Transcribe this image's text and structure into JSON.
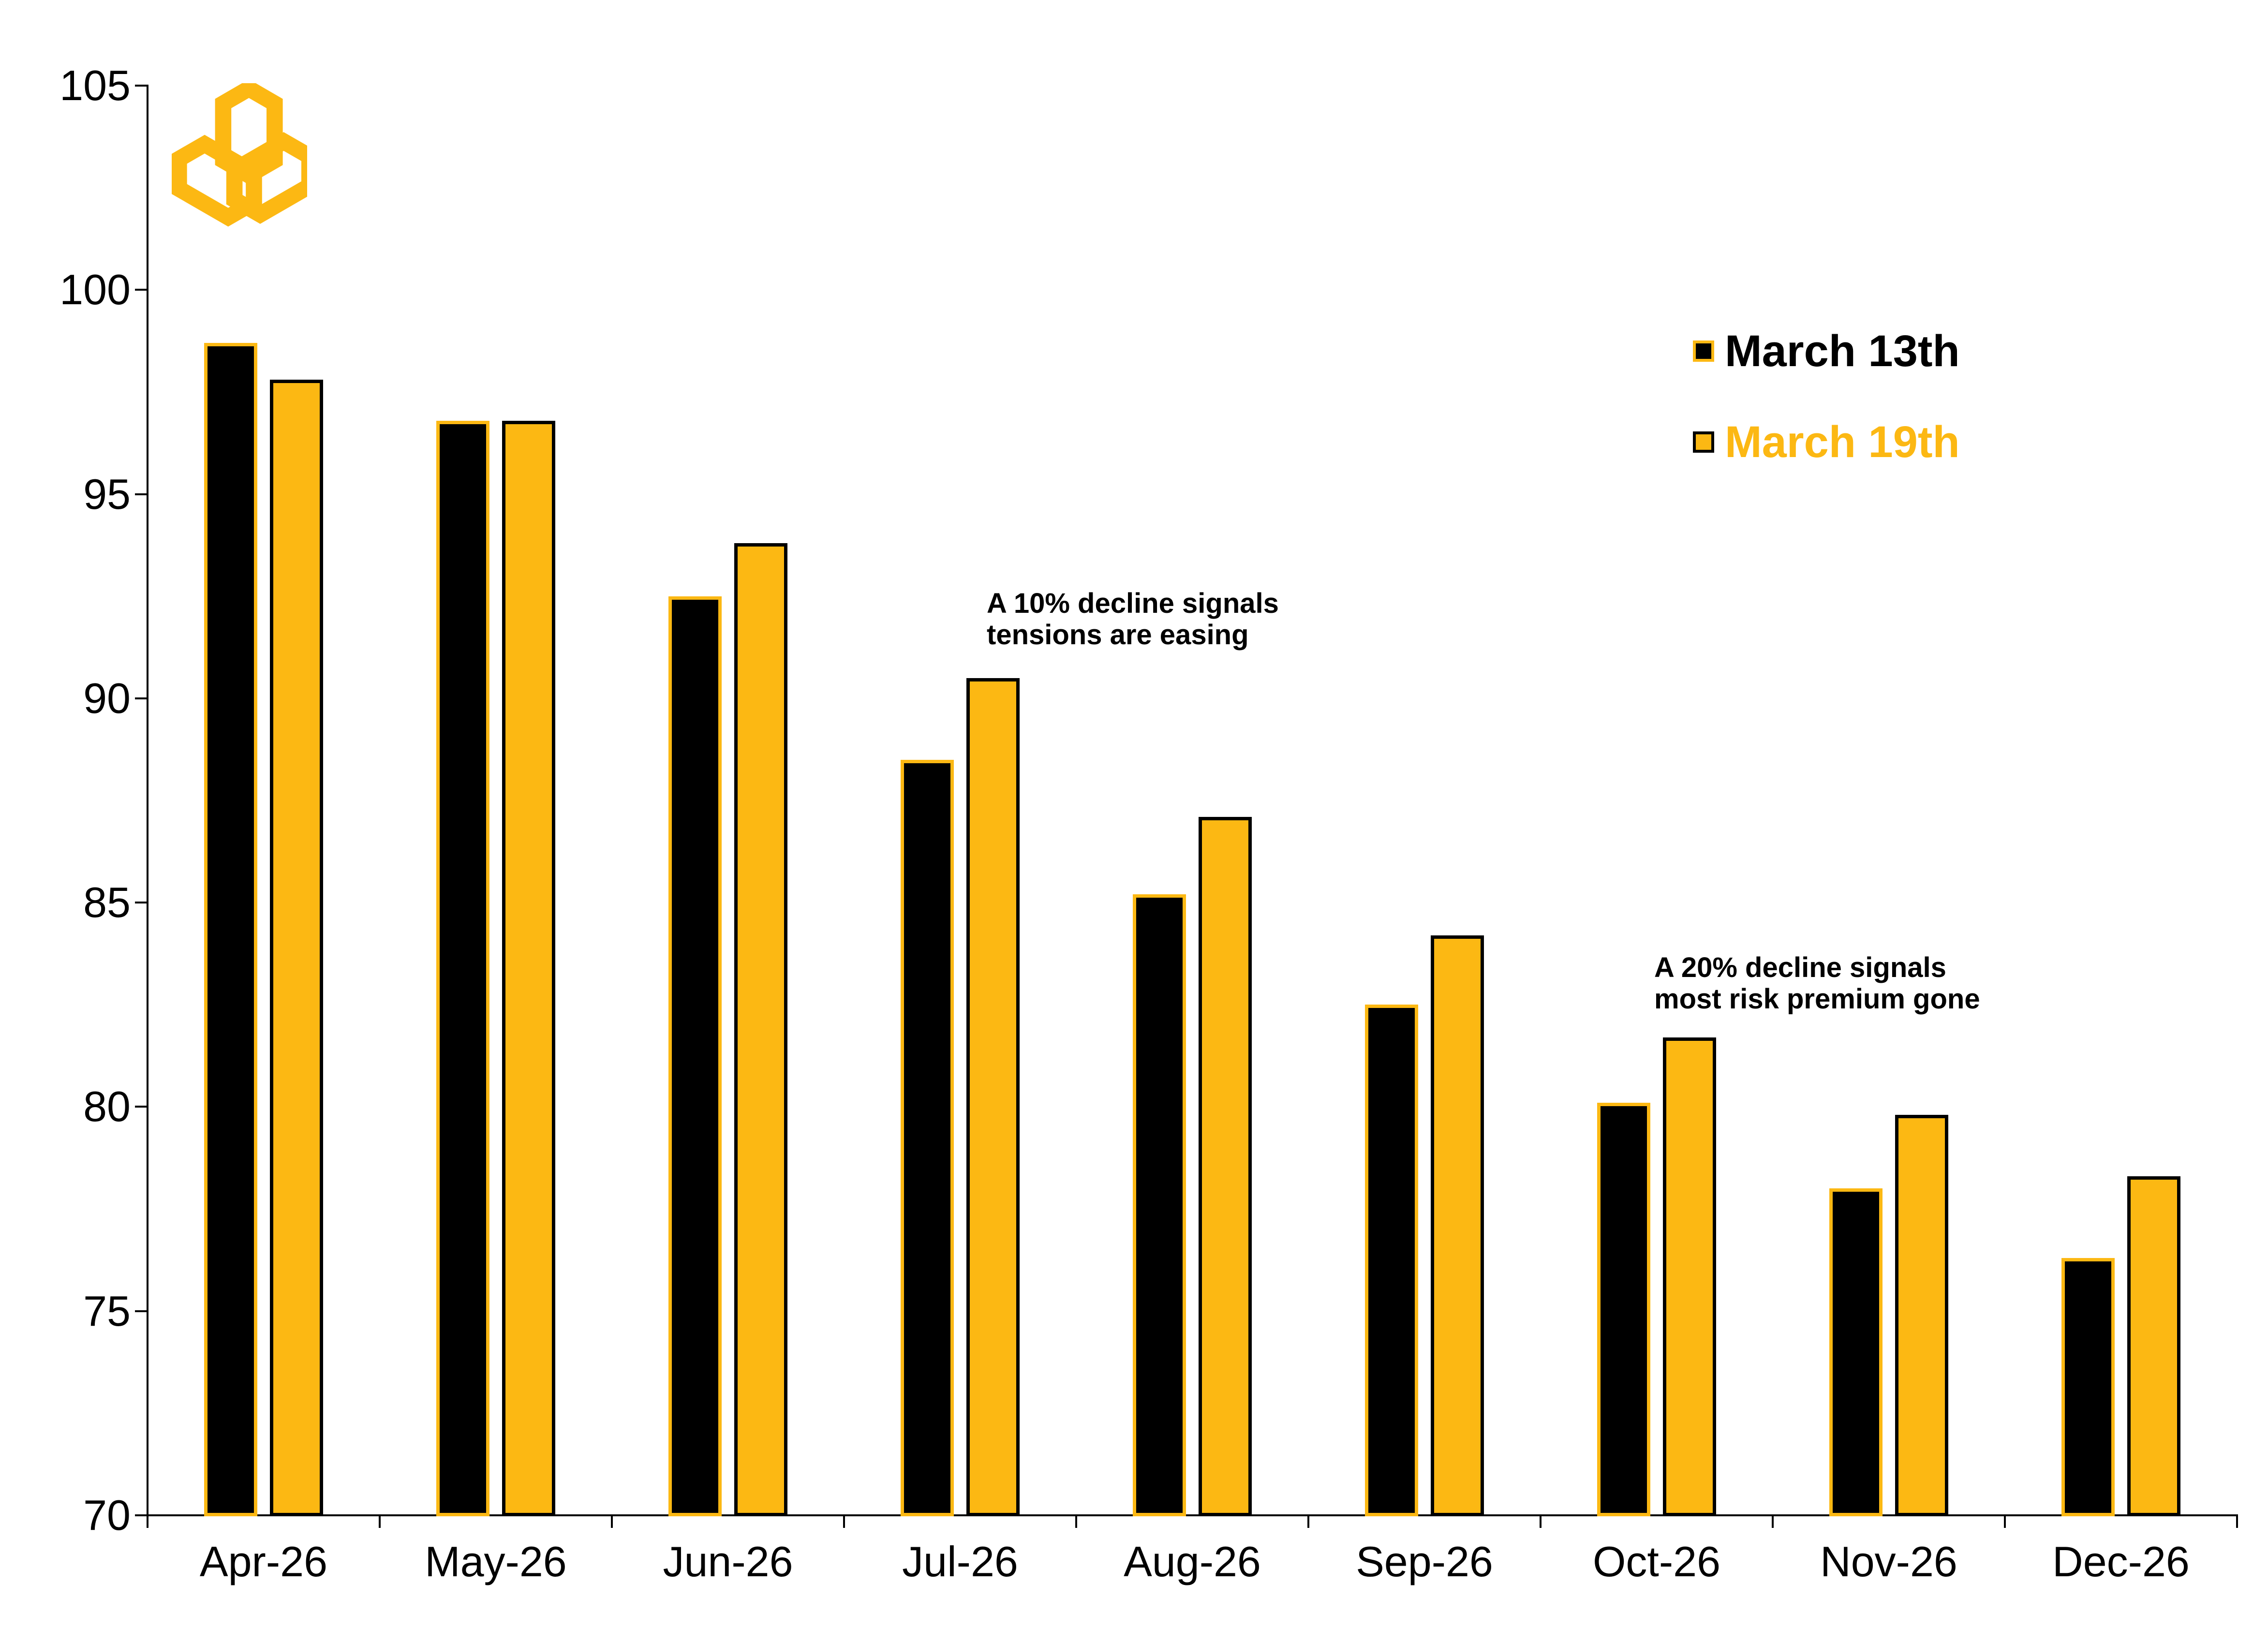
{
  "chart_data": {
    "type": "bar",
    "title": "",
    "xlabel": "",
    "ylabel": "",
    "categories": [
      "Apr-26",
      "May-26",
      "Jun-26",
      "Jul-26",
      "Aug-26",
      "Sep-26",
      "Oct-26",
      "Nov-26",
      "Dec-26"
    ],
    "series": [
      {
        "name": "March 13th",
        "fill": "#000000",
        "border": "#FCB813",
        "values": [
          98.7,
          96.8,
          92.5,
          88.5,
          85.2,
          82.5,
          80.1,
          78.0,
          76.3
        ]
      },
      {
        "name": "March 19th",
        "fill": "#FCB813",
        "border": "#000000",
        "values": [
          97.8,
          96.8,
          93.8,
          90.5,
          87.1,
          84.2,
          81.7,
          79.8,
          78.3
        ]
      }
    ],
    "ylim": [
      70,
      105
    ],
    "ytick_step": 5,
    "ytick_labels": [
      "70",
      "75",
      "80",
      "85",
      "90",
      "95",
      "100",
      "105"
    ],
    "grid": false,
    "legend_position": "upper-right-inside"
  },
  "legend": {
    "items": [
      {
        "label": "March 13th",
        "fill": "#000000",
        "border": "#FCB813",
        "text_color": "#000000"
      },
      {
        "label": "March 19th",
        "fill": "#FCB813",
        "border": "#000000",
        "text_color": "#FCB813"
      }
    ]
  },
  "annotations": [
    {
      "text": "A 10% decline signals\ntensions are easing"
    },
    {
      "text": "A 20% decline signals\nmost risk premium gone"
    }
  ],
  "logo": {
    "name": "interlocking-hexagons-logo",
    "color": "#FCB813"
  },
  "colors": {
    "background": "#FFFFFF",
    "axis": "#000000",
    "accent_yellow": "#FCB813",
    "black": "#000000"
  }
}
